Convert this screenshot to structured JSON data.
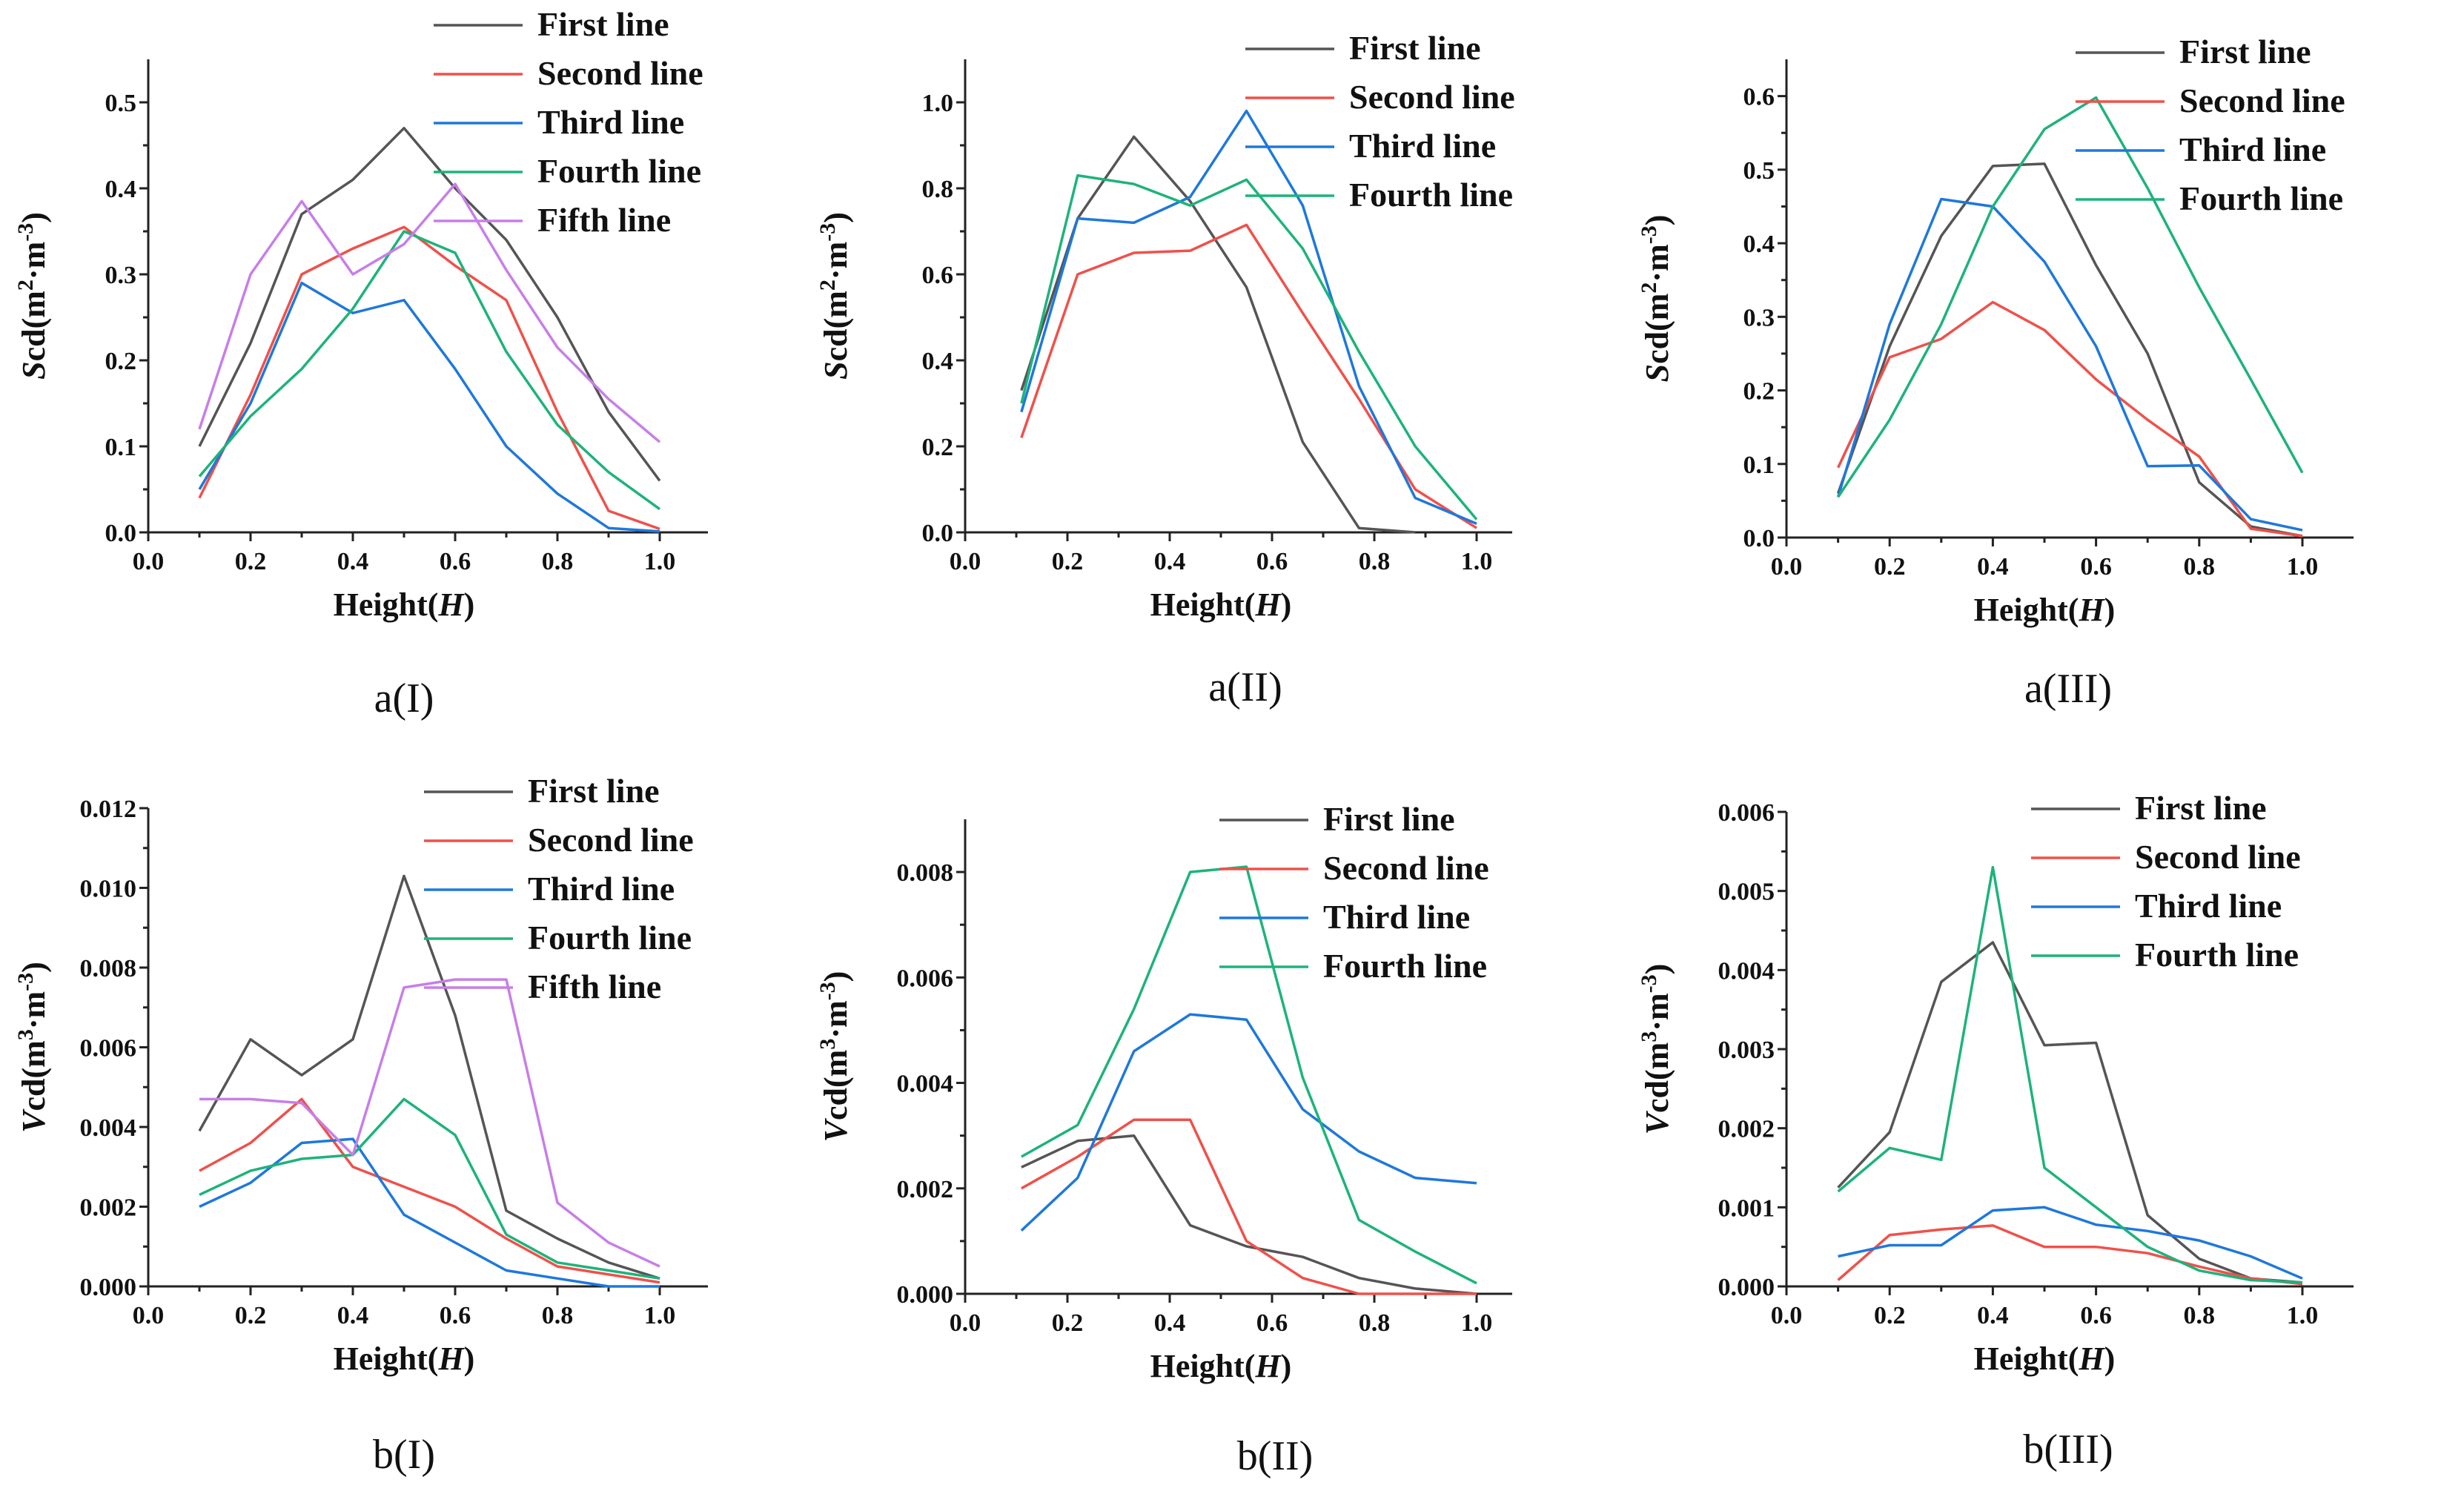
{
  "colors": {
    "First line": "#555555",
    "Second line": "#f0504a",
    "Third line": "#1e78dc",
    "Fourth line": "#1db37a",
    "Fifth line": "#c77ee8"
  },
  "chart_data": [
    {
      "type": "line",
      "caption": "a(I)",
      "xlabel": "Height(",
      "xlabel_var": "H",
      "xlabel_end": ")",
      "ylabel_var": "S",
      "ylabel_text": "cd(m",
      "ylabel_sup1": "2",
      "ylabel_mid": "·m",
      "ylabel_sup2": "-3",
      "ylabel_end": ")",
      "xlim": [
        0,
        1
      ],
      "ylim": [
        0,
        0.55
      ],
      "xticks": [
        "0.0",
        "0.2",
        "0.4",
        "0.6",
        "0.8",
        "1.0"
      ],
      "yticks": [
        "0.0",
        "0.1",
        "0.2",
        "0.3",
        "0.4",
        "0.5"
      ],
      "series": [
        {
          "name": "First line",
          "x": [
            0.1,
            0.2,
            0.3,
            0.4,
            0.5,
            0.6,
            0.7,
            0.8,
            0.9,
            1.0
          ],
          "y": [
            0.1,
            0.22,
            0.37,
            0.41,
            0.47,
            0.4,
            0.34,
            0.25,
            0.14,
            0.06
          ]
        },
        {
          "name": "Second line",
          "x": [
            0.1,
            0.2,
            0.3,
            0.4,
            0.5,
            0.6,
            0.7,
            0.8,
            0.9,
            1.0
          ],
          "y": [
            0.04,
            0.16,
            0.3,
            0.33,
            0.355,
            0.31,
            0.27,
            0.14,
            0.025,
            0.004
          ]
        },
        {
          "name": "Third line",
          "x": [
            0.1,
            0.2,
            0.3,
            0.4,
            0.5,
            0.6,
            0.7,
            0.8,
            0.9,
            1.0
          ],
          "y": [
            0.05,
            0.15,
            0.29,
            0.255,
            0.27,
            0.19,
            0.1,
            0.045,
            0.005,
            0.001
          ]
        },
        {
          "name": "Fourth line",
          "x": [
            0.1,
            0.2,
            0.3,
            0.4,
            0.5,
            0.6,
            0.7,
            0.8,
            0.9,
            1.0
          ],
          "y": [
            0.065,
            0.135,
            0.19,
            0.26,
            0.35,
            0.325,
            0.21,
            0.125,
            0.07,
            0.027
          ]
        },
        {
          "name": "Fifth line",
          "x": [
            0.1,
            0.2,
            0.3,
            0.4,
            0.5,
            0.6,
            0.7,
            0.8,
            0.9,
            1.0
          ],
          "y": [
            0.12,
            0.3,
            0.385,
            0.3,
            0.335,
            0.405,
            0.305,
            0.215,
            0.155,
            0.105
          ]
        }
      ]
    },
    {
      "type": "line",
      "caption": "a(II)",
      "xlabel": "Height(",
      "xlabel_var": "H",
      "xlabel_end": ")",
      "ylabel_var": "S",
      "ylabel_text": "cd(m",
      "ylabel_sup1": "2",
      "ylabel_mid": "·m",
      "ylabel_sup2": "-3",
      "ylabel_end": ")",
      "xlim": [
        0,
        1
      ],
      "ylim": [
        0,
        1.1
      ],
      "xticks": [
        "0.0",
        "0.2",
        "0.4",
        "0.6",
        "0.8",
        "1.0"
      ],
      "yticks": [
        "0.0",
        "0.2",
        "0.4",
        "0.6",
        "0.8",
        "1.0"
      ],
      "series": [
        {
          "name": "First line",
          "x": [
            0.11,
            0.22,
            0.33,
            0.44,
            0.55,
            0.66,
            0.77,
            0.88
          ],
          "y": [
            0.33,
            0.73,
            0.92,
            0.77,
            0.57,
            0.21,
            0.01,
            0.0
          ]
        },
        {
          "name": "Second line",
          "x": [
            0.11,
            0.22,
            0.33,
            0.44,
            0.55,
            0.66,
            0.77,
            0.88,
            1.0
          ],
          "y": [
            0.22,
            0.6,
            0.65,
            0.655,
            0.715,
            0.51,
            0.31,
            0.1,
            0.01
          ]
        },
        {
          "name": "Third line",
          "x": [
            0.11,
            0.22,
            0.33,
            0.44,
            0.55,
            0.66,
            0.77,
            0.88,
            1.0
          ],
          "y": [
            0.28,
            0.73,
            0.72,
            0.78,
            0.98,
            0.76,
            0.34,
            0.08,
            0.02
          ]
        },
        {
          "name": "Fourth line",
          "x": [
            0.11,
            0.22,
            0.33,
            0.44,
            0.55,
            0.66,
            0.77,
            0.88,
            1.0
          ],
          "y": [
            0.3,
            0.83,
            0.81,
            0.76,
            0.82,
            0.66,
            0.42,
            0.2,
            0.03
          ]
        }
      ]
    },
    {
      "type": "line",
      "caption": "a(III)",
      "xlabel": "Height(",
      "xlabel_var": "H",
      "xlabel_end": ")",
      "ylabel_var": "S",
      "ylabel_text": "cd(m",
      "ylabel_sup1": "2",
      "ylabel_mid": "·m",
      "ylabel_sup2": "-3",
      "ylabel_end": ")",
      "xlim": [
        0,
        1
      ],
      "ylim": [
        0,
        0.65
      ],
      "xticks": [
        "0.0",
        "0.2",
        "0.4",
        "0.6",
        "0.8",
        "1.0"
      ],
      "yticks": [
        "0.0",
        "0.1",
        "0.2",
        "0.3",
        "0.4",
        "0.5",
        "0.6"
      ],
      "series": [
        {
          "name": "First line",
          "x": [
            0.1,
            0.2,
            0.3,
            0.4,
            0.5,
            0.6,
            0.7,
            0.8,
            0.9,
            1.0
          ],
          "y": [
            0.06,
            0.26,
            0.41,
            0.505,
            0.508,
            0.37,
            0.25,
            0.075,
            0.015,
            0.002
          ]
        },
        {
          "name": "Second line",
          "x": [
            0.1,
            0.2,
            0.3,
            0.4,
            0.5,
            0.6,
            0.7,
            0.8,
            0.9,
            1.0
          ],
          "y": [
            0.095,
            0.245,
            0.27,
            0.32,
            0.282,
            0.215,
            0.16,
            0.11,
            0.012,
            0.002
          ]
        },
        {
          "name": "Third line",
          "x": [
            0.1,
            0.2,
            0.3,
            0.4,
            0.5,
            0.6,
            0.7,
            0.8,
            0.9,
            1.0
          ],
          "y": [
            0.055,
            0.29,
            0.46,
            0.45,
            0.375,
            0.26,
            0.097,
            0.098,
            0.025,
            0.01
          ]
        },
        {
          "name": "Fourth line",
          "x": [
            0.1,
            0.2,
            0.3,
            0.4,
            0.5,
            0.6,
            0.7,
            0.8,
            0.9,
            1.0
          ],
          "y": [
            0.055,
            0.16,
            0.29,
            0.45,
            0.555,
            0.598,
            0.475,
            0.34,
            0.215,
            0.088
          ]
        }
      ]
    },
    {
      "type": "line",
      "caption": "b(I)",
      "xlabel": "Height(",
      "xlabel_var": "H",
      "xlabel_end": ")",
      "ylabel_var": "V",
      "ylabel_text": "cd(m",
      "ylabel_sup1": "3",
      "ylabel_mid": "·m",
      "ylabel_sup2": "-3",
      "ylabel_end": ")",
      "xlim": [
        0,
        1
      ],
      "ylim": [
        0,
        0.012
      ],
      "xticks": [
        "0.0",
        "0.2",
        "0.4",
        "0.6",
        "0.8",
        "1.0"
      ],
      "yticks": [
        "0.000",
        "0.002",
        "0.004",
        "0.006",
        "0.008",
        "0.010",
        "0.012"
      ],
      "series": [
        {
          "name": "First line",
          "x": [
            0.1,
            0.2,
            0.3,
            0.4,
            0.5,
            0.6,
            0.7,
            0.8,
            0.9,
            1.0
          ],
          "y": [
            0.0039,
            0.0062,
            0.0053,
            0.0062,
            0.0103,
            0.0068,
            0.0019,
            0.0012,
            0.0006,
            0.0002
          ]
        },
        {
          "name": "Second line",
          "x": [
            0.1,
            0.2,
            0.3,
            0.4,
            0.5,
            0.6,
            0.7,
            0.8,
            0.9,
            1.0
          ],
          "y": [
            0.0029,
            0.0036,
            0.0047,
            0.003,
            0.0025,
            0.002,
            0.0012,
            0.0005,
            0.0003,
            0.0001
          ]
        },
        {
          "name": "Third line",
          "x": [
            0.1,
            0.2,
            0.3,
            0.4,
            0.5,
            0.6,
            0.7,
            0.8,
            0.9,
            1.0
          ],
          "y": [
            0.002,
            0.0026,
            0.0036,
            0.0037,
            0.0018,
            0.0011,
            0.0004,
            0.0002,
            0.0,
            0.0
          ]
        },
        {
          "name": "Fourth line",
          "x": [
            0.1,
            0.2,
            0.3,
            0.4,
            0.5,
            0.6,
            0.7,
            0.8,
            0.9,
            1.0
          ],
          "y": [
            0.0023,
            0.0029,
            0.0032,
            0.0033,
            0.0047,
            0.0038,
            0.0013,
            0.0006,
            0.0004,
            0.0002
          ]
        },
        {
          "name": "Fifth line",
          "x": [
            0.1,
            0.2,
            0.3,
            0.4,
            0.5,
            0.6,
            0.7,
            0.8,
            0.9,
            1.0
          ],
          "y": [
            0.0047,
            0.0047,
            0.0046,
            0.0033,
            0.0075,
            0.0077,
            0.0077,
            0.0021,
            0.0011,
            0.0005
          ]
        }
      ]
    },
    {
      "type": "line",
      "caption": "b(II)",
      "xlabel": "Height(",
      "xlabel_var": "H",
      "xlabel_end": ")",
      "ylabel_var": "V",
      "ylabel_text": "cd(m",
      "ylabel_sup1": "3",
      "ylabel_mid": "·m",
      "ylabel_sup2": "-3",
      "ylabel_end": ")",
      "xlim": [
        0,
        1
      ],
      "ylim": [
        0,
        0.009
      ],
      "xticks": [
        "0.0",
        "0.2",
        "0.4",
        "0.6",
        "0.8",
        "1.0"
      ],
      "yticks": [
        "0.000",
        "0.002",
        "0.004",
        "0.006",
        "0.008"
      ],
      "series": [
        {
          "name": "First line",
          "x": [
            0.11,
            0.22,
            0.33,
            0.44,
            0.55,
            0.66,
            0.77,
            0.88,
            1.0
          ],
          "y": [
            0.0024,
            0.0029,
            0.003,
            0.0013,
            0.0009,
            0.0007,
            0.0003,
            0.0001,
            0.0
          ]
        },
        {
          "name": "Second line",
          "x": [
            0.11,
            0.22,
            0.33,
            0.44,
            0.55,
            0.66,
            0.77,
            0.88,
            1.0
          ],
          "y": [
            0.002,
            0.0026,
            0.0033,
            0.0033,
            0.001,
            0.0003,
            0.0,
            0.0,
            0.0
          ]
        },
        {
          "name": "Third line",
          "x": [
            0.11,
            0.22,
            0.33,
            0.44,
            0.55,
            0.66,
            0.77,
            0.88,
            1.0
          ],
          "y": [
            0.0012,
            0.0022,
            0.0046,
            0.0053,
            0.0052,
            0.0035,
            0.0027,
            0.0022,
            0.0021
          ]
        },
        {
          "name": "Fourth line",
          "x": [
            0.11,
            0.22,
            0.33,
            0.44,
            0.55,
            0.66,
            0.77,
            0.88,
            1.0
          ],
          "y": [
            0.0026,
            0.0032,
            0.0054,
            0.008,
            0.0081,
            0.0041,
            0.0014,
            0.0008,
            0.0002
          ]
        }
      ]
    },
    {
      "type": "line",
      "caption": "b(III)",
      "xlabel": "Height(",
      "xlabel_var": "H",
      "xlabel_end": ")",
      "ylabel_var": "V",
      "ylabel_text": "cd(m",
      "ylabel_sup1": "3",
      "ylabel_mid": "·m",
      "ylabel_sup2": "-3",
      "ylabel_end": ")",
      "xlim": [
        0,
        1
      ],
      "ylim": [
        0,
        0.006
      ],
      "xticks": [
        "0.0",
        "0.2",
        "0.4",
        "0.6",
        "0.8",
        "1.0"
      ],
      "yticks": [
        "0.000",
        "0.001",
        "0.002",
        "0.003",
        "0.004",
        "0.005",
        "0.006"
      ],
      "series": [
        {
          "name": "First line",
          "x": [
            0.1,
            0.2,
            0.3,
            0.4,
            0.5,
            0.6,
            0.7,
            0.8,
            0.9,
            1.0
          ],
          "y": [
            0.00125,
            0.00195,
            0.00385,
            0.00435,
            0.00305,
            0.00308,
            0.0009,
            0.00035,
            0.0001,
            5e-05
          ]
        },
        {
          "name": "Second line",
          "x": [
            0.1,
            0.2,
            0.3,
            0.4,
            0.5,
            0.6,
            0.7,
            0.8,
            0.9,
            1.0
          ],
          "y": [
            8e-05,
            0.00065,
            0.00072,
            0.00077,
            0.0005,
            0.0005,
            0.00042,
            0.00025,
            0.0001,
            3e-05
          ]
        },
        {
          "name": "Third line",
          "x": [
            0.1,
            0.2,
            0.3,
            0.4,
            0.5,
            0.6,
            0.7,
            0.8,
            0.9,
            1.0
          ],
          "y": [
            0.00038,
            0.00052,
            0.00052,
            0.00096,
            0.001,
            0.00078,
            0.0007,
            0.00058,
            0.00038,
            0.0001
          ]
        },
        {
          "name": "Fourth line",
          "x": [
            0.1,
            0.2,
            0.3,
            0.4,
            0.5,
            0.6,
            0.7,
            0.8,
            0.9,
            1.0
          ],
          "y": [
            0.0012,
            0.00175,
            0.0016,
            0.0053,
            0.0015,
            0.001,
            0.0005,
            0.0002,
            8e-05,
            5e-05
          ]
        }
      ]
    }
  ]
}
